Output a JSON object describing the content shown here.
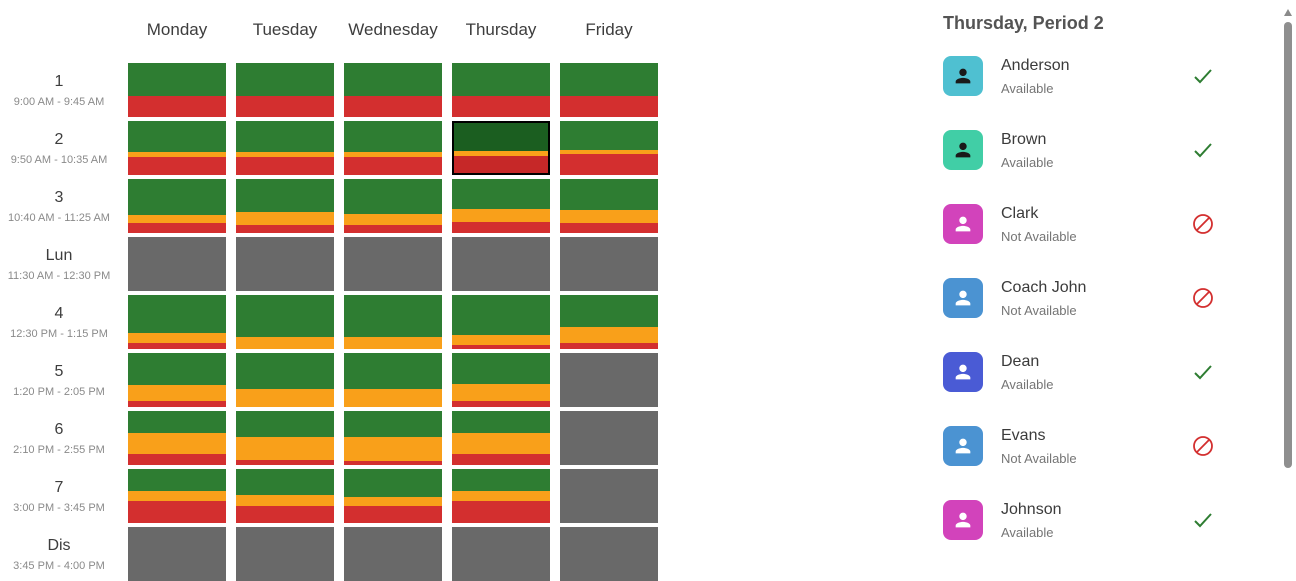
{
  "panel": {
    "title": "Thursday, Period 2"
  },
  "colors": {
    "green": "#2E7D32",
    "orange": "#F9A01A",
    "red": "#D32F2F",
    "gray": "#696969",
    "selected_green": "#1B5E20",
    "selected_red": "#C62828",
    "check": "#2E7D32",
    "block": "#D32F2F"
  },
  "schedule": {
    "days": [
      "Monday",
      "Tuesday",
      "Wednesday",
      "Thursday",
      "Friday"
    ],
    "selected": {
      "day_index": 3,
      "period_index": 1
    },
    "periods": [
      {
        "label": "1",
        "time": "9:00 AM - 9:45 AM",
        "cells": [
          [
            61,
            0,
            39
          ],
          [
            61,
            0,
            39
          ],
          [
            61,
            0,
            39
          ],
          [
            61,
            0,
            39
          ],
          [
            61,
            0,
            39
          ]
        ]
      },
      {
        "label": "2",
        "time": "9:50 AM - 10:35 AM",
        "cells": [
          [
            57,
            9,
            34
          ],
          [
            57,
            9,
            34
          ],
          [
            57,
            9,
            34
          ],
          [
            55,
            10,
            35
          ],
          [
            53,
            8,
            39
          ]
        ]
      },
      {
        "label": "3",
        "time": "10:40 AM - 11:25 AM",
        "cells": [
          [
            66,
            15,
            19
          ],
          [
            61,
            25,
            14
          ],
          [
            64,
            22,
            14
          ],
          [
            55,
            25,
            20
          ],
          [
            57,
            25,
            18
          ]
        ]
      },
      {
        "label": "Lun",
        "time": "11:30 AM - 12:30 PM",
        "cells": [
          null,
          null,
          null,
          null,
          null
        ]
      },
      {
        "label": "4",
        "time": "12:30 PM - 1:15 PM",
        "cells": [
          [
            70,
            18,
            12
          ],
          [
            78,
            22,
            0
          ],
          [
            78,
            22,
            0
          ],
          [
            74,
            18,
            8
          ],
          [
            60,
            29,
            11
          ]
        ]
      },
      {
        "label": "5",
        "time": "1:20 PM - 2:05 PM",
        "cells": [
          [
            60,
            29,
            11
          ],
          [
            67,
            33,
            0
          ],
          [
            67,
            33,
            0
          ],
          [
            57,
            32,
            11
          ],
          null
        ]
      },
      {
        "label": "6",
        "time": "2:10 PM - 2:55 PM",
        "cells": [
          [
            41,
            38,
            21
          ],
          [
            49,
            41,
            10
          ],
          [
            49,
            43,
            8
          ],
          [
            41,
            38,
            21
          ],
          null
        ]
      },
      {
        "label": "7",
        "time": "3:00 PM - 3:45 PM",
        "cells": [
          [
            41,
            19,
            40
          ],
          [
            49,
            19,
            32
          ],
          [
            51,
            17,
            32
          ],
          [
            41,
            19,
            40
          ],
          null
        ]
      },
      {
        "label": "Dis",
        "time": "3:45 PM - 4:00 PM",
        "cells": [
          null,
          null,
          null,
          null,
          null
        ]
      }
    ]
  },
  "people": [
    {
      "name": "Anderson",
      "status": "Available",
      "avatar_color": "#4FC0D1",
      "icon_color": "#1A1A1A",
      "available": true
    },
    {
      "name": "Brown",
      "status": "Available",
      "avatar_color": "#41CEA6",
      "icon_color": "#1A1A1A",
      "available": true
    },
    {
      "name": "Clark",
      "status": "Not Available",
      "avatar_color": "#D243BB",
      "icon_color": "#FFFFFF",
      "available": false
    },
    {
      "name": "Coach John",
      "status": "Not Available",
      "avatar_color": "#4B93D2",
      "icon_color": "#FFFFFF",
      "available": false
    },
    {
      "name": "Dean",
      "status": "Available",
      "avatar_color": "#4A5BD5",
      "icon_color": "#FFFFFF",
      "available": true
    },
    {
      "name": "Evans",
      "status": "Not Available",
      "avatar_color": "#4B93D2",
      "icon_color": "#FFFFFF",
      "available": false
    },
    {
      "name": "Johnson",
      "status": "Available",
      "avatar_color": "#D243BB",
      "icon_color": "#FFFFFF",
      "available": true
    }
  ]
}
